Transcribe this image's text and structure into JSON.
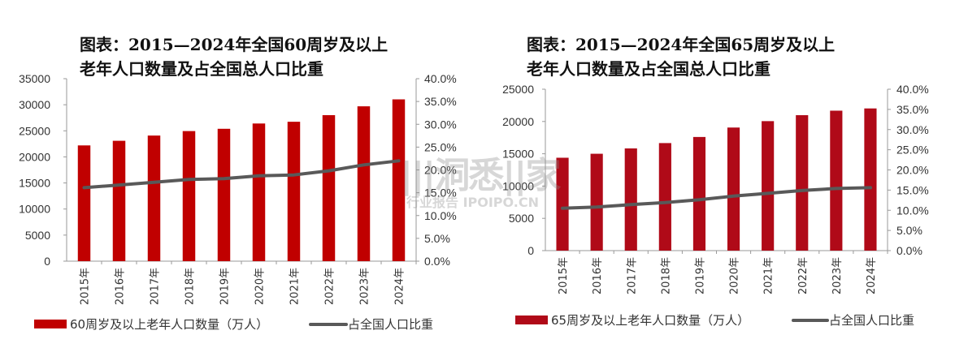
{
  "charts": [
    {
      "title": "图表：2015—2024年全国60周岁及以上\n老年人口数量及占全国总人口比重",
      "legend": {
        "bar": "60周岁及以上老年人口数量（万人）",
        "line": "占全国人口比重"
      },
      "left_ticks": [
        "0",
        "5000",
        "10000",
        "15000",
        "20000",
        "25000",
        "30000",
        "35000"
      ],
      "right_ticks": [
        "0.0%",
        "5.0%",
        "10.0%",
        "15.0%",
        "20.0%",
        "25.0%",
        "30.0%",
        "35.0%",
        "40.0%"
      ]
    },
    {
      "title": "图表：2015—2024年全国65周岁及以上\n老年人口数量及占全国总人口比重",
      "legend": {
        "bar": "65周岁及以上老年人口数量（万人）",
        "line": "占全国人口比重"
      },
      "left_ticks": [
        "0",
        "5000",
        "10000",
        "15000",
        "20000",
        "25000"
      ],
      "right_ticks": [
        "0.0%",
        "5.0%",
        "10.0%",
        "15.0%",
        "20.0%",
        "25.0%",
        "30.0%",
        "35.0%",
        "40.0%"
      ]
    }
  ],
  "chart_data": [
    {
      "type": "bar",
      "categories": [
        "2015年",
        "2016年",
        "2017年",
        "2018年",
        "2019年",
        "2020年",
        "2021年",
        "2022年",
        "2023年",
        "2024年"
      ],
      "series": [
        {
          "name": "60周岁及以上老年人口数量（万人）",
          "type": "bar",
          "axis": "left",
          "values": [
            22200,
            23086,
            24090,
            24949,
            25388,
            26402,
            26736,
            28004,
            29697,
            31031
          ]
        },
        {
          "name": "占全国人口比重",
          "type": "line",
          "axis": "right",
          "values": [
            16.1,
            16.7,
            17.3,
            17.9,
            18.1,
            18.7,
            18.9,
            19.8,
            21.1,
            22.0
          ]
        }
      ],
      "ylim_left": [
        0,
        35000
      ],
      "ylim_right": [
        0,
        40
      ],
      "grid": false,
      "legend_position": "bottom",
      "colors": {
        "bar": "#c00000",
        "line": "#595959"
      }
    },
    {
      "type": "bar",
      "categories": [
        "2015年",
        "2016年",
        "2017年",
        "2018年",
        "2019年",
        "2020年",
        "2021年",
        "2022年",
        "2023年",
        "2024年"
      ],
      "series": [
        {
          "name": "65周岁及以上老年人口数量（万人）",
          "type": "bar",
          "axis": "left",
          "values": [
            14386,
            15003,
            15831,
            16658,
            17603,
            19064,
            20056,
            20978,
            21676,
            22023
          ]
        },
        {
          "name": "占全国人口比重",
          "type": "line",
          "axis": "right",
          "values": [
            10.5,
            10.8,
            11.4,
            11.9,
            12.6,
            13.5,
            14.2,
            14.9,
            15.4,
            15.6
          ]
        }
      ],
      "ylim_left": [
        0,
        25000
      ],
      "ylim_right": [
        0,
        40
      ],
      "grid": false,
      "legend_position": "bottom",
      "colors": {
        "bar": "#b00a18",
        "line": "#595959"
      }
    }
  ],
  "watermark": {
    "main": "|||洞悉||家",
    "sub": "行业报告 IPOIPO.CN"
  }
}
